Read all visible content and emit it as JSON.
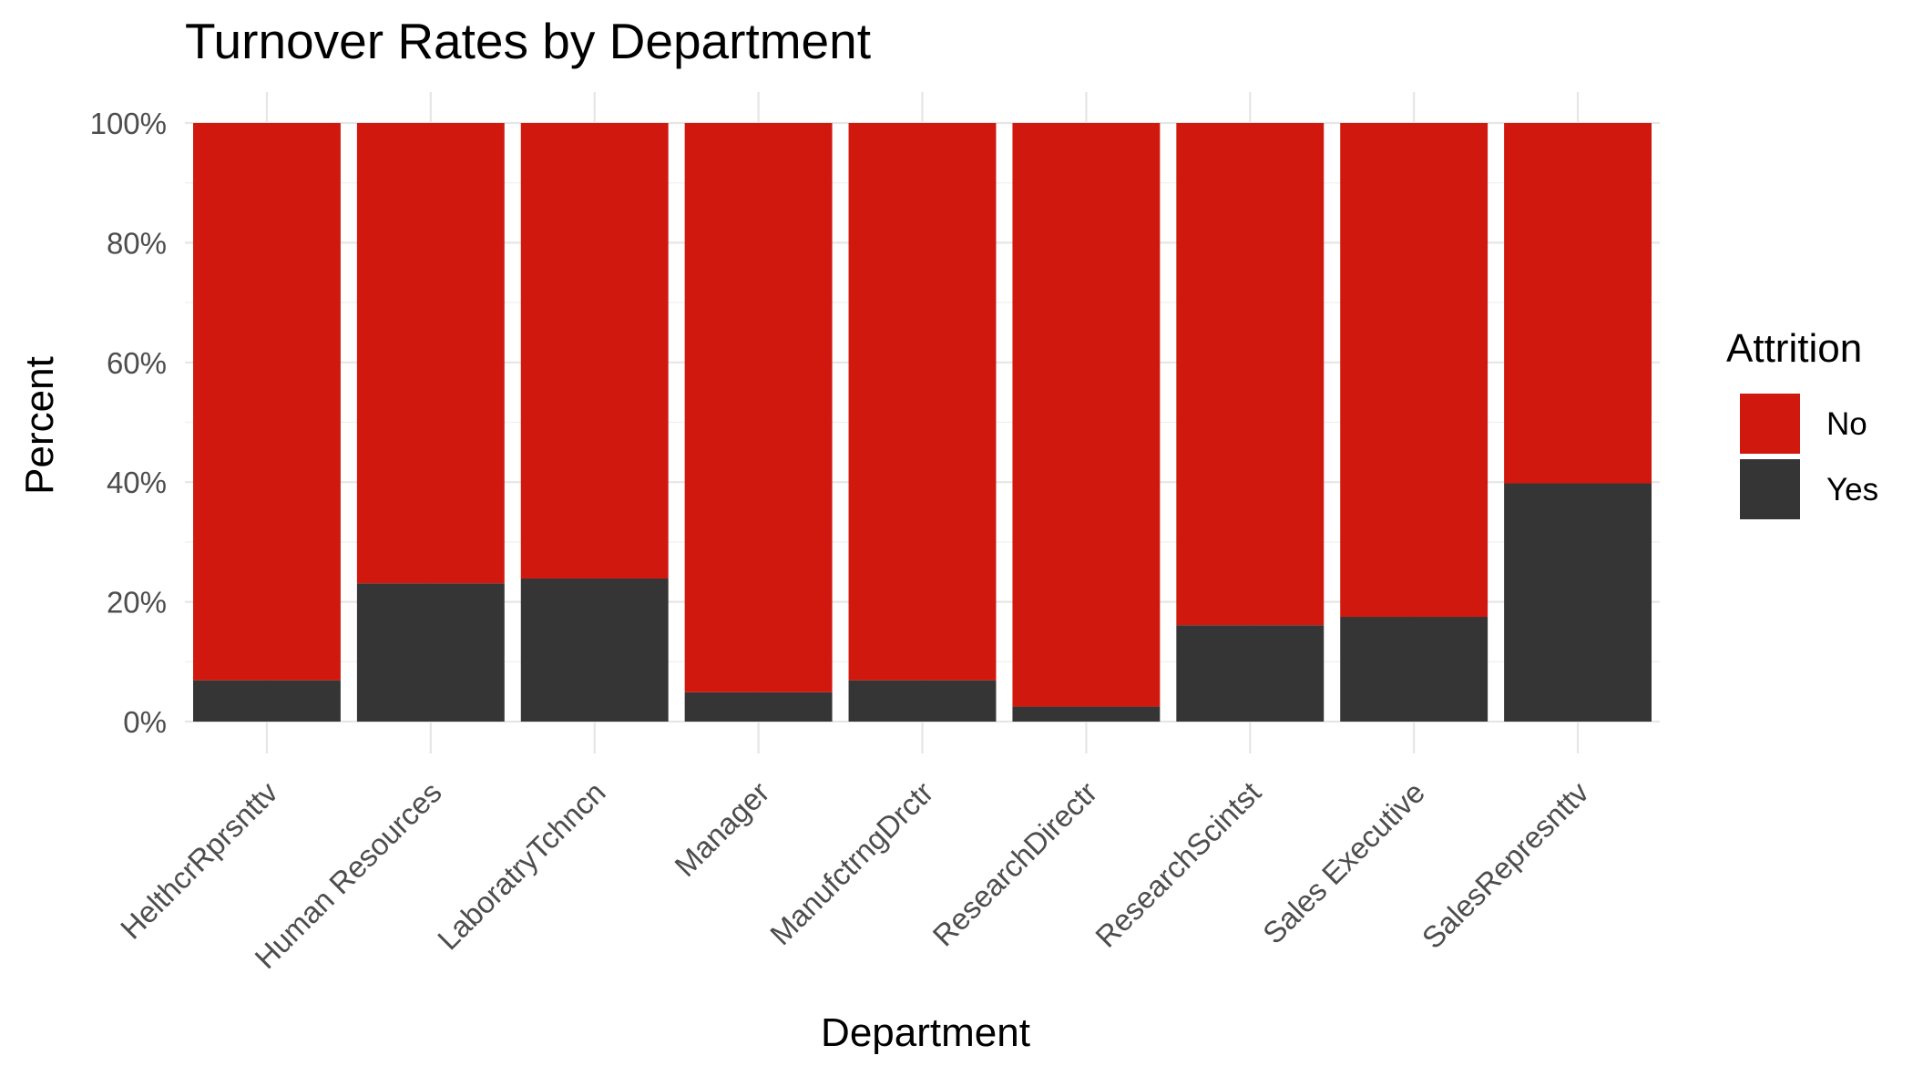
{
  "chart_data": {
    "type": "bar",
    "stacked": true,
    "normalized": true,
    "title": "Turnover Rates by Department",
    "xlabel": "Department",
    "ylabel": "Percent",
    "ylim": [
      0,
      1
    ],
    "y_ticks": [
      "0%",
      "20%",
      "40%",
      "60%",
      "80%",
      "100%"
    ],
    "categories": [
      "HelthcrRprsnttv",
      "Human Resources",
      "LaboratryTchncn",
      "Manager",
      "ManufctrngDrctr",
      "ResearchDirectr",
      "ResearchScintst",
      "Sales Executive",
      "SalesRepresnttv"
    ],
    "series": [
      {
        "name": "No",
        "color": "#d0180f",
        "values": [
          0.931,
          0.769,
          0.761,
          0.951,
          0.931,
          0.975,
          0.839,
          0.825,
          0.602
        ]
      },
      {
        "name": "Yes",
        "color": "#353535",
        "values": [
          0.069,
          0.231,
          0.239,
          0.049,
          0.069,
          0.025,
          0.161,
          0.175,
          0.398
        ]
      }
    ],
    "legend": {
      "title": "Attrition",
      "position": "right"
    },
    "grid": true
  }
}
